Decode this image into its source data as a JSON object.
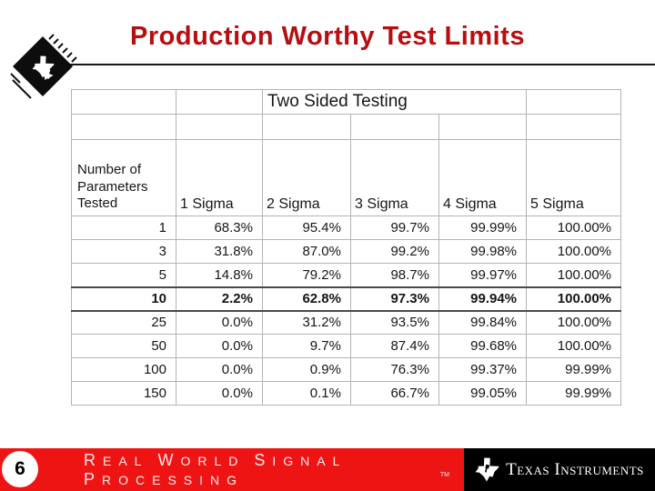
{
  "slide": {
    "title": "Production Worthy Test Limits",
    "title_color": "#b70e11"
  },
  "table": {
    "top_header": "Two Sided Testing",
    "corner_header": "Number of Parameters Tested",
    "sigma_headers": [
      "1 Sigma",
      "2 Sigma",
      "3 Sigma",
      "4 Sigma",
      "5 Sigma"
    ],
    "rows": [
      {
        "parameters": "1",
        "values": [
          "68.3%",
          "95.4%",
          "99.7%",
          "99.99%",
          "100.00%"
        ],
        "emphasis": false
      },
      {
        "parameters": "3",
        "values": [
          "31.8%",
          "87.0%",
          "99.2%",
          "99.98%",
          "100.00%"
        ],
        "emphasis": false
      },
      {
        "parameters": "5",
        "values": [
          "14.8%",
          "79.2%",
          "98.7%",
          "99.97%",
          "100.00%"
        ],
        "emphasis": false
      },
      {
        "parameters": "10",
        "values": [
          "2.2%",
          "62.8%",
          "97.3%",
          "99.94%",
          "100.00%"
        ],
        "emphasis": true
      },
      {
        "parameters": "25",
        "values": [
          "0.0%",
          "31.2%",
          "93.5%",
          "99.84%",
          "100.00%"
        ],
        "emphasis": false
      },
      {
        "parameters": "50",
        "values": [
          "0.0%",
          "9.7%",
          "87.4%",
          "99.68%",
          "100.00%"
        ],
        "emphasis": false
      },
      {
        "parameters": "100",
        "values": [
          "0.0%",
          "0.9%",
          "76.3%",
          "99.37%",
          "99.99%"
        ],
        "emphasis": false
      },
      {
        "parameters": "150",
        "values": [
          "0.0%",
          "0.1%",
          "66.7%",
          "99.05%",
          "99.99%"
        ],
        "emphasis": false
      }
    ]
  },
  "footer": {
    "slide_number": "6",
    "banner_words": [
      "REAL",
      "WORLD",
      "SIGNAL",
      "PROCESSING"
    ],
    "trademark": "TM",
    "brand": "Texas Instruments",
    "bar_red": "#ee1414",
    "bar_black": "#000000"
  },
  "icons": {
    "chip": "ti-chip-icon",
    "ti_logo": "texas-instruments-logo"
  }
}
